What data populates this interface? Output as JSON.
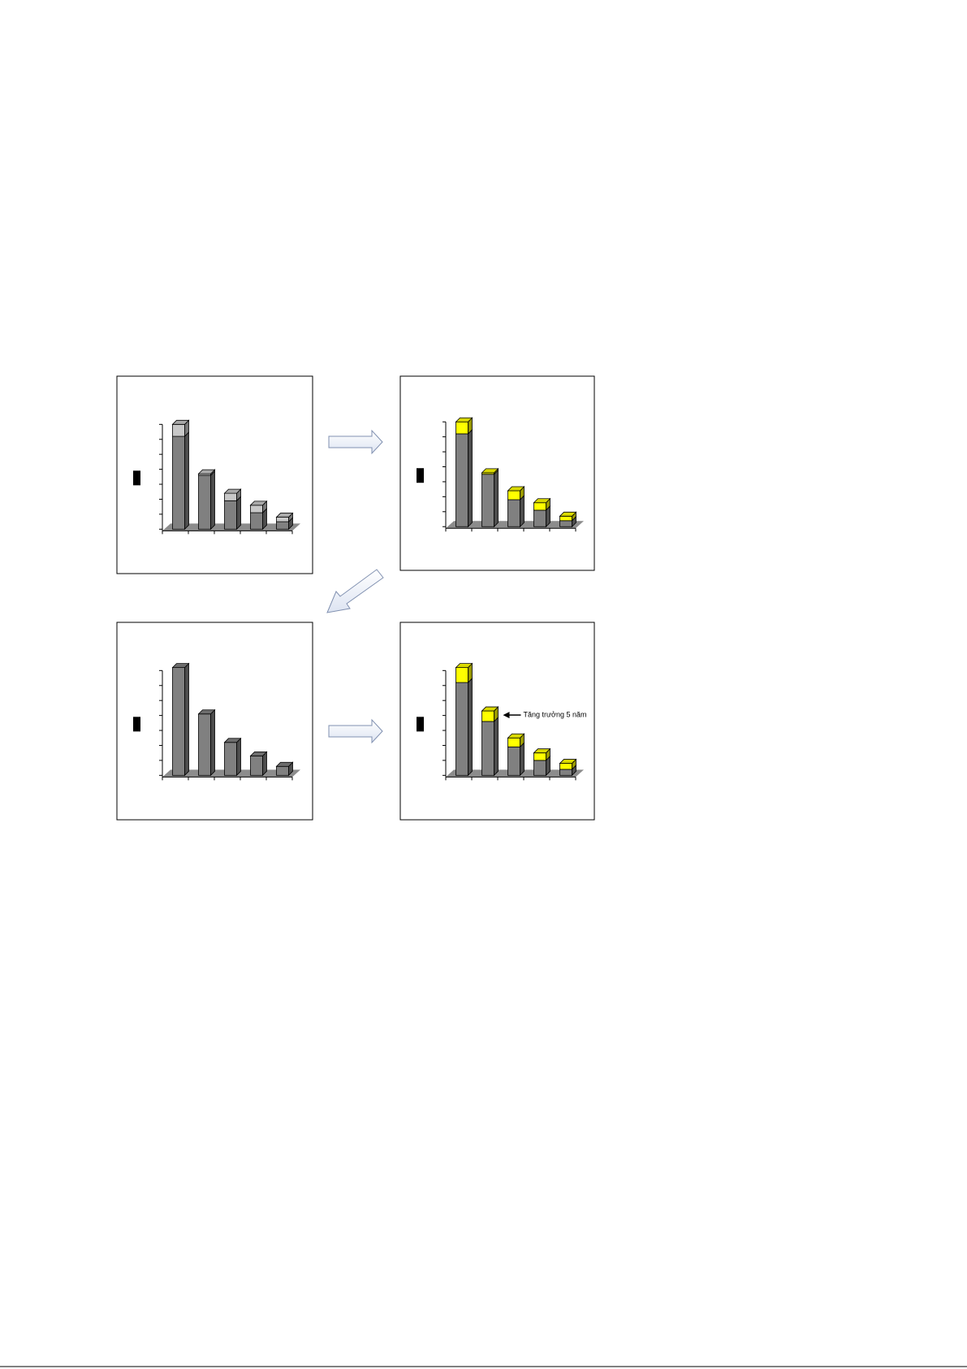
{
  "chart_data": [
    {
      "type": "bar",
      "stacked": true,
      "categories": [
        null,
        null,
        null,
        null,
        null
      ],
      "series": [
        {
          "color": "#808080",
          "values": [
            6.2,
            3.6,
            1.9,
            1.1,
            0.5
          ]
        },
        {
          "color": "#c8c8c8",
          "values": [
            0.8,
            0.1,
            0.5,
            0.5,
            0.3
          ]
        }
      ],
      "ylim": [
        0,
        7
      ],
      "yticks": [
        0,
        1,
        2,
        3,
        4,
        5,
        6,
        7
      ]
    },
    {
      "type": "bar",
      "stacked": true,
      "categories": [
        null,
        null,
        null,
        null,
        null
      ],
      "series": [
        {
          "color": "#808080",
          "values": [
            6.2,
            3.5,
            1.8,
            1.1,
            0.4
          ]
        },
        {
          "color": "#ffff00",
          "values": [
            0.8,
            0.1,
            0.6,
            0.5,
            0.3
          ]
        }
      ],
      "ylim": [
        0,
        7
      ],
      "yticks": [
        0,
        1,
        2,
        3,
        4,
        5,
        6,
        7
      ]
    },
    {
      "type": "bar",
      "stacked": true,
      "categories": [
        null,
        null,
        null,
        null,
        null
      ],
      "series": [
        {
          "color": "#808080",
          "values": [
            7.2,
            4.1,
            2.2,
            1.3,
            0.6
          ]
        }
      ],
      "ylim": [
        0,
        7
      ],
      "yticks": [
        0,
        1,
        2,
        3,
        4,
        5,
        6,
        7
      ]
    },
    {
      "type": "bar",
      "stacked": true,
      "categories": [
        null,
        null,
        null,
        null,
        null
      ],
      "series": [
        {
          "color": "#808080",
          "values": [
            6.2,
            3.6,
            1.9,
            1.0,
            0.4
          ]
        },
        {
          "color": "#ffff00",
          "values": [
            1.0,
            0.7,
            0.6,
            0.5,
            0.4
          ]
        }
      ],
      "ylim": [
        0,
        7
      ],
      "yticks": [
        0,
        1,
        2,
        3,
        4,
        5,
        6,
        7
      ],
      "annotation": "Tăng trưởng 5 năm",
      "annotation_category": 1
    }
  ]
}
